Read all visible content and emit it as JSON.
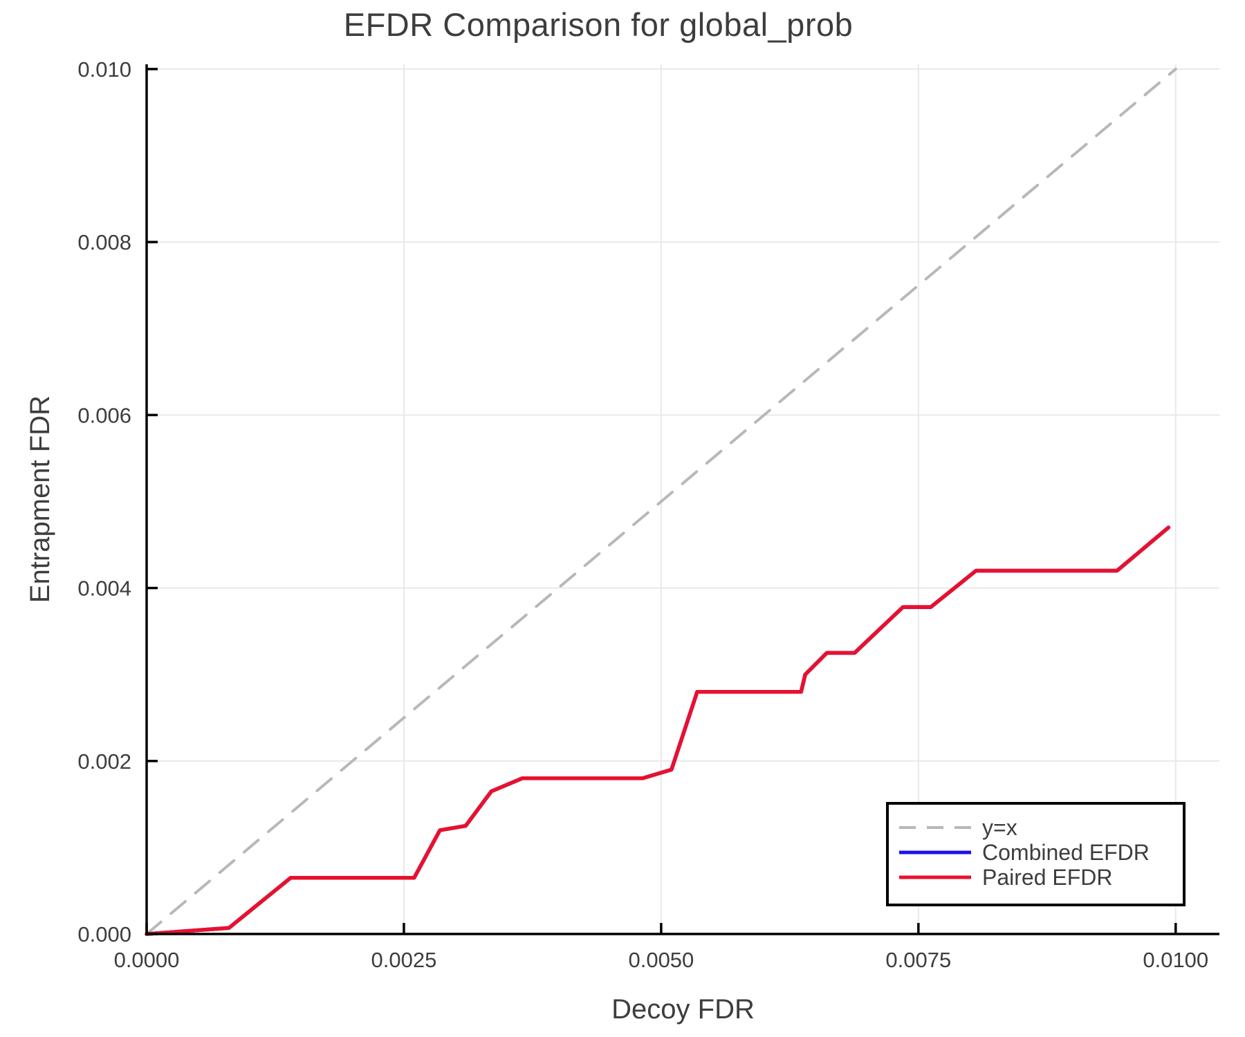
{
  "title": "EFDR Comparison for global_prob",
  "colors": {
    "text": "#3d3d3d",
    "spine": "#000000",
    "grid": "#e9e9e9",
    "background": "#ffffff",
    "identity_line": "#b8b8b8",
    "combined_efdr": "#1b0fee",
    "paired_efdr": "#e8112d",
    "legend_border": "#000000",
    "legend_background": "#ffffff"
  },
  "chart_data": {
    "type": "line",
    "title": "EFDR Comparison for global_prob",
    "xlabel": "Decoy FDR",
    "ylabel": "Entrapment FDR",
    "xlim": [
      0,
      0.010425
    ],
    "ylim": [
      0,
      0.010055
    ],
    "grid": true,
    "legend_position": "lower right",
    "xticks": [
      {
        "value": 0.0,
        "label": "0.0000"
      },
      {
        "value": 0.0025,
        "label": "0.0025"
      },
      {
        "value": 0.005,
        "label": "0.0050"
      },
      {
        "value": 0.0075,
        "label": "0.0075"
      },
      {
        "value": 0.01,
        "label": "0.0100"
      }
    ],
    "yticks": [
      {
        "value": 0.0,
        "label": "0.000"
      },
      {
        "value": 0.002,
        "label": "0.002"
      },
      {
        "value": 0.004,
        "label": "0.004"
      },
      {
        "value": 0.006,
        "label": "0.006"
      },
      {
        "value": 0.008,
        "label": "0.008"
      },
      {
        "value": 0.01,
        "label": "0.010"
      }
    ],
    "series": [
      {
        "name": "y=x",
        "style": "dashed",
        "color": "#b8b8b8",
        "width": 4,
        "points": [
          [
            0.0,
            0.0
          ],
          [
            0.01,
            0.01
          ]
        ]
      },
      {
        "name": "Combined EFDR",
        "style": "solid",
        "color": "#1b0fee",
        "width": 5.5,
        "points": [
          [
            0.0,
            0.0
          ],
          [
            0.0008,
            7e-05
          ],
          [
            0.0014,
            0.00065
          ],
          [
            0.0026,
            0.00065
          ],
          [
            0.00285,
            0.0012
          ],
          [
            0.0031,
            0.00125
          ],
          [
            0.00335,
            0.00165
          ],
          [
            0.00365,
            0.0018
          ],
          [
            0.00482,
            0.0018
          ],
          [
            0.0051,
            0.0019
          ],
          [
            0.00535,
            0.0028
          ],
          [
            0.00636,
            0.0028
          ],
          [
            0.0064,
            0.003
          ],
          [
            0.00661,
            0.00325
          ],
          [
            0.00688,
            0.00325
          ],
          [
            0.00735,
            0.00378
          ],
          [
            0.00762,
            0.00378
          ],
          [
            0.00806,
            0.0042
          ],
          [
            0.00943,
            0.0042
          ],
          [
            0.00993,
            0.0047
          ]
        ]
      },
      {
        "name": "Paired EFDR",
        "style": "solid",
        "color": "#e8112d",
        "width": 5.5,
        "points": [
          [
            0.0,
            0.0
          ],
          [
            0.0008,
            7e-05
          ],
          [
            0.0014,
            0.00065
          ],
          [
            0.0026,
            0.00065
          ],
          [
            0.00285,
            0.0012
          ],
          [
            0.0031,
            0.00125
          ],
          [
            0.00335,
            0.00165
          ],
          [
            0.00365,
            0.0018
          ],
          [
            0.00482,
            0.0018
          ],
          [
            0.0051,
            0.0019
          ],
          [
            0.00535,
            0.0028
          ],
          [
            0.00636,
            0.0028
          ],
          [
            0.0064,
            0.003
          ],
          [
            0.00661,
            0.00325
          ],
          [
            0.00688,
            0.00325
          ],
          [
            0.00735,
            0.00378
          ],
          [
            0.00762,
            0.00378
          ],
          [
            0.00806,
            0.0042
          ],
          [
            0.00943,
            0.0042
          ],
          [
            0.00993,
            0.0047
          ]
        ]
      }
    ]
  }
}
